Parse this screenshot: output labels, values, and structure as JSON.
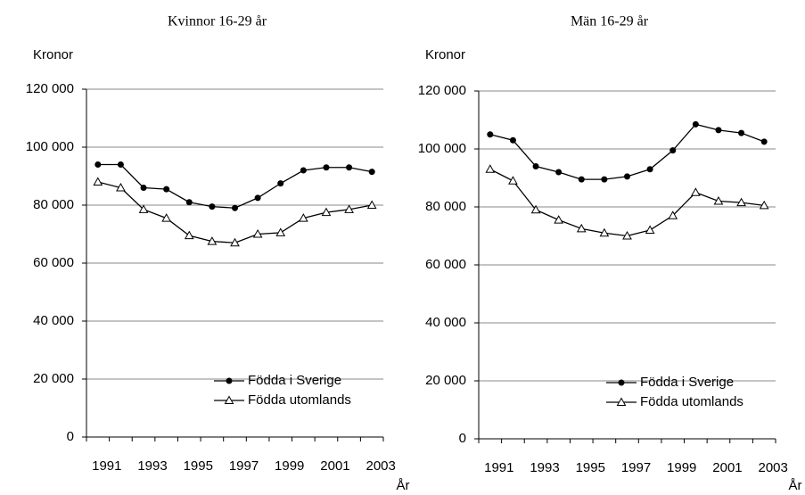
{
  "chart_data": [
    {
      "type": "line",
      "title": "Kvinnor 16-29 år",
      "y_label": "Kronor",
      "x_label": "År",
      "categories": [
        "1991",
        null,
        "1993",
        null,
        "1995",
        null,
        "1997",
        null,
        "1999",
        null,
        "2001",
        null,
        "2003"
      ],
      "series": [
        {
          "name": "Födda i Sverige",
          "color": "#000000",
          "marker": "circle",
          "values": [
            94000,
            94000,
            86000,
            85500,
            81000,
            79500,
            79000,
            82500,
            87500,
            92000,
            93000,
            93000,
            91500
          ]
        },
        {
          "name": "Födda utomlands",
          "color": "#000000",
          "marker": "triangle",
          "values": [
            88000,
            86000,
            78500,
            75500,
            69500,
            67500,
            67000,
            70000,
            70500,
            75500,
            77500,
            78500,
            80000
          ]
        }
      ],
      "ylim": [
        0,
        120000
      ],
      "yticks": [
        0,
        {
          "value": 20000,
          "label": "20 000"
        },
        {
          "value": 40000,
          "label": "40 000"
        },
        {
          "value": 60000,
          "label": "60 000"
        },
        {
          "value": 80000,
          "label": "80 000"
        },
        {
          "value": 100000,
          "label": "100 000"
        },
        {
          "value": 120000,
          "label": "120 000"
        }
      ],
      "grid": true,
      "legend": "lower right"
    },
    {
      "type": "line",
      "title": "Män 16-29 år",
      "y_label": "Kronor",
      "x_label": "År",
      "categories": [
        "1991",
        null,
        "1993",
        null,
        "1995",
        null,
        "1997",
        null,
        "1999",
        null,
        "2001",
        null,
        "2003"
      ],
      "series": [
        {
          "name": "Födda i Sverige",
          "color": "#000000",
          "marker": "circle",
          "values": [
            105000,
            103000,
            94000,
            92000,
            89500,
            89500,
            90500,
            93000,
            99500,
            108500,
            106500,
            105500,
            102500
          ]
        },
        {
          "name": "Födda utomlands",
          "color": "#000000",
          "marker": "triangle",
          "values": [
            93000,
            89000,
            79000,
            75500,
            72500,
            71000,
            70000,
            72000,
            77000,
            85000,
            82000,
            81500,
            80500
          ]
        }
      ],
      "ylim": [
        0,
        120000
      ],
      "yticks": [
        0,
        {
          "value": 20000,
          "label": "20 000"
        },
        {
          "value": 40000,
          "label": "40 000"
        },
        {
          "value": 60000,
          "label": "60 000"
        },
        {
          "value": 80000,
          "label": "80 000"
        },
        {
          "value": 100000,
          "label": "100 000"
        },
        {
          "value": 120000,
          "label": "120 000"
        }
      ],
      "grid": true,
      "legend": "lower right"
    }
  ]
}
